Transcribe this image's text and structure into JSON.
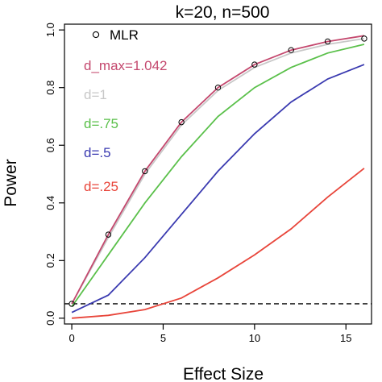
{
  "chart_data": {
    "type": "line",
    "title": "k=20, n=500",
    "xlabel": "Effect Size",
    "ylabel": "Power",
    "xlim": [
      -0.4,
      16.4
    ],
    "ylim": [
      -0.02,
      1.02
    ],
    "x_ticks": [
      0,
      5,
      10,
      15
    ],
    "y_ticks": [
      0.0,
      0.2,
      0.4,
      0.6,
      0.8,
      1.0
    ],
    "x_tick_labels": [
      "0",
      "5",
      "10",
      "15"
    ],
    "y_tick_labels": [
      "0.0",
      "0.2",
      "0.4",
      "0.6",
      "0.8",
      "1.0"
    ],
    "reference_line": {
      "y": 0.05,
      "style": "dashed",
      "color": "#000000"
    },
    "legend_position": "top-left",
    "series": [
      {
        "name": "MLR",
        "style": "markers",
        "marker": "circle",
        "color": "#000000",
        "x": [
          0,
          2,
          4,
          6,
          8,
          10,
          12,
          14,
          16
        ],
        "y": [
          0.05,
          0.29,
          0.51,
          0.68,
          0.8,
          0.88,
          0.93,
          0.96,
          0.97
        ]
      },
      {
        "name": "d_max=1.042",
        "style": "line",
        "color": "#c4486e",
        "x": [
          0,
          2,
          4,
          6,
          8,
          10,
          12,
          14,
          16
        ],
        "y": [
          0.05,
          0.29,
          0.51,
          0.68,
          0.8,
          0.88,
          0.93,
          0.96,
          0.98
        ]
      },
      {
        "name": "d=1",
        "style": "line",
        "color": "#c8c8c8",
        "x": [
          0,
          2,
          4,
          6,
          8,
          10,
          12,
          14,
          16
        ],
        "y": [
          0.05,
          0.28,
          0.5,
          0.67,
          0.79,
          0.87,
          0.92,
          0.95,
          0.97
        ]
      },
      {
        "name": "d=.75",
        "style": "line",
        "color": "#5ac04a",
        "x": [
          0,
          2,
          4,
          6,
          8,
          10,
          12,
          14,
          16
        ],
        "y": [
          0.04,
          0.22,
          0.4,
          0.56,
          0.7,
          0.8,
          0.87,
          0.92,
          0.95
        ]
      },
      {
        "name": "d=.5",
        "style": "line",
        "color": "#3a3ab0",
        "x": [
          0,
          2,
          4,
          6,
          8,
          10,
          12,
          14,
          16
        ],
        "y": [
          0.02,
          0.08,
          0.21,
          0.36,
          0.51,
          0.64,
          0.75,
          0.83,
          0.88
        ]
      },
      {
        "name": "d=.25",
        "style": "line",
        "color": "#e8453a",
        "x": [
          0,
          2,
          4,
          6,
          8,
          10,
          12,
          14,
          16
        ],
        "y": [
          0.0,
          0.01,
          0.03,
          0.07,
          0.14,
          0.22,
          0.31,
          0.42,
          0.52
        ]
      }
    ]
  }
}
